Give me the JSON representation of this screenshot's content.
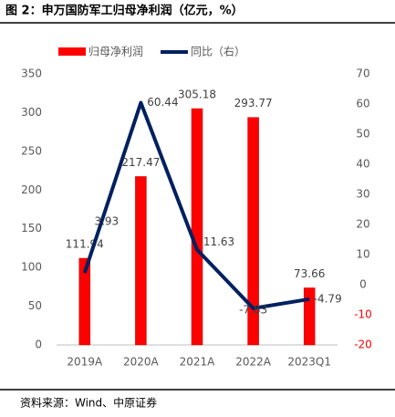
{
  "chart_data": {
    "type": "bar_line",
    "title": "图 2：申万国防军工归母净利润（亿元，%）",
    "source": "资料来源：Wind、中原证券",
    "categories": [
      "2019A",
      "2020A",
      "2021A",
      "2022A",
      "2023Q1"
    ],
    "series": [
      {
        "name": "归母净利润",
        "type": "bar",
        "color": "#ff0000",
        "values": [
          111.94,
          217.47,
          305.18,
          293.77,
          73.66
        ]
      },
      {
        "name": "同比（右）",
        "type": "line",
        "axis": "y2",
        "color": "#002060",
        "values": [
          3.93,
          60.44,
          11.63,
          -7.83,
          -4.79
        ]
      }
    ],
    "ylim": [
      0,
      350
    ],
    "yticks": [
      0,
      50,
      100,
      150,
      200,
      250,
      300,
      350
    ],
    "y2lim": [
      -20,
      70
    ],
    "y2ticks": [
      -20,
      -10,
      0,
      10,
      20,
      30,
      40,
      50,
      60,
      70
    ],
    "y2tick_negative_color": "#ff0000",
    "legend": "top",
    "grid": false
  }
}
